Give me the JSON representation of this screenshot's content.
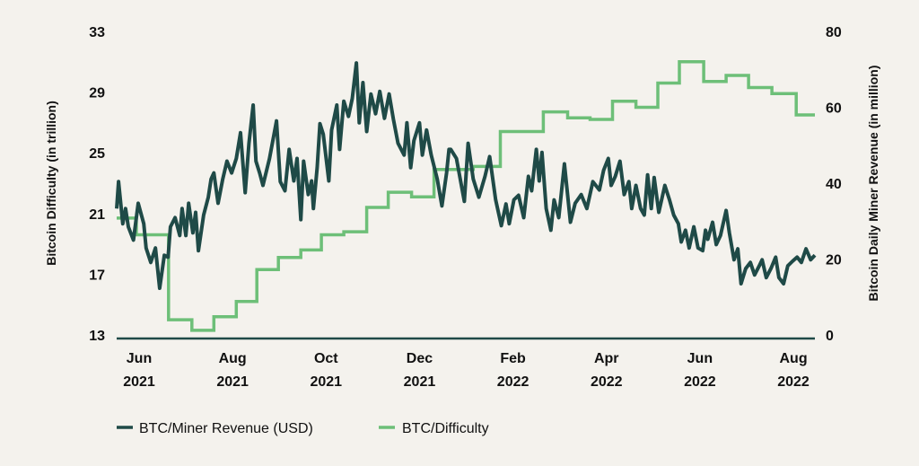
{
  "chart_data": {
    "type": "line",
    "x_unit": "months since Jun 2021",
    "xlim": [
      -0.48,
      14.46
    ],
    "x_ticks": [
      {
        "x": 0,
        "line1": "Jun",
        "line2": "2021"
      },
      {
        "x": 2,
        "line1": "Aug",
        "line2": "2021"
      },
      {
        "x": 4,
        "line1": "Oct",
        "line2": "2021"
      },
      {
        "x": 6,
        "line1": "Dec",
        "line2": "2021"
      },
      {
        "x": 8,
        "line1": "Feb",
        "line2": "2022"
      },
      {
        "x": 10,
        "line1": "Apr",
        "line2": "2022"
      },
      {
        "x": 12,
        "line1": "Jun",
        "line2": "2022"
      },
      {
        "x": 14,
        "line1": "Aug",
        "line2": "2022"
      }
    ],
    "y_left": {
      "label": "Bitcoin Difficulty (in trillion)",
      "lim": [
        13,
        33
      ],
      "ticks": [
        "13",
        "17",
        "21",
        "25",
        "29",
        "33"
      ]
    },
    "y_right": {
      "label": "Bitcoin Daily Miner Revenue (in million)",
      "lim": [
        0,
        80
      ],
      "ticks": [
        "0",
        "20",
        "40",
        "60",
        "80"
      ]
    },
    "legend_position": "bottom-left",
    "series": [
      {
        "name": "BTC/Miner Revenue (USD)",
        "axis": "right",
        "color": "#1f4a47",
        "points": [
          [
            -0.48,
            33.3
          ],
          [
            -0.44,
            40.4
          ],
          [
            -0.35,
            29.3
          ],
          [
            -0.29,
            33.3
          ],
          [
            -0.23,
            28.5
          ],
          [
            -0.12,
            25
          ],
          [
            -0.02,
            34.7
          ],
          [
            0.1,
            29.3
          ],
          [
            0.15,
            22.9
          ],
          [
            0.25,
            19.1
          ],
          [
            0.35,
            22.9
          ],
          [
            0.44,
            12.3
          ],
          [
            0.54,
            21
          ],
          [
            0.62,
            20.5
          ],
          [
            0.67,
            28.5
          ],
          [
            0.77,
            30.9
          ],
          [
            0.87,
            26.2
          ],
          [
            0.92,
            33.3
          ],
          [
            1.0,
            26.2
          ],
          [
            1.06,
            34.7
          ],
          [
            1.15,
            26.9
          ],
          [
            1.21,
            32.3
          ],
          [
            1.27,
            22.2
          ],
          [
            1.38,
            31.6
          ],
          [
            1.48,
            36.3
          ],
          [
            1.54,
            41.1
          ],
          [
            1.6,
            42.7
          ],
          [
            1.69,
            34.7
          ],
          [
            1.79,
            41.1
          ],
          [
            1.88,
            45.8
          ],
          [
            1.98,
            42.7
          ],
          [
            2.08,
            46.5
          ],
          [
            2.17,
            53.3
          ],
          [
            2.27,
            37.5
          ],
          [
            2.35,
            50.5
          ],
          [
            2.44,
            60.6
          ],
          [
            2.5,
            45.8
          ],
          [
            2.58,
            42.7
          ],
          [
            2.65,
            39.4
          ],
          [
            2.79,
            46.5
          ],
          [
            2.94,
            56.4
          ],
          [
            3.02,
            40.4
          ],
          [
            3.12,
            38
          ],
          [
            3.21,
            48.9
          ],
          [
            3.31,
            40.6
          ],
          [
            3.38,
            46.5
          ],
          [
            3.46,
            30.4
          ],
          [
            3.52,
            45.8
          ],
          [
            3.62,
            37
          ],
          [
            3.69,
            40.6
          ],
          [
            3.73,
            33.3
          ],
          [
            3.81,
            44.1
          ],
          [
            3.87,
            55.7
          ],
          [
            3.94,
            52.9
          ],
          [
            4.06,
            40.6
          ],
          [
            4.12,
            54
          ],
          [
            4.23,
            60.6
          ],
          [
            4.29,
            48.9
          ],
          [
            4.38,
            61.6
          ],
          [
            4.48,
            57.6
          ],
          [
            4.56,
            62.3
          ],
          [
            4.65,
            71.7
          ],
          [
            4.71,
            55.9
          ],
          [
            4.79,
            66.5
          ],
          [
            4.87,
            53.6
          ],
          [
            4.96,
            63.5
          ],
          [
            5.06,
            58.3
          ],
          [
            5.15,
            64.2
          ],
          [
            5.25,
            57.1
          ],
          [
            5.35,
            63.5
          ],
          [
            5.44,
            56.9
          ],
          [
            5.54,
            50.5
          ],
          [
            5.67,
            47.4
          ],
          [
            5.73,
            55.9
          ],
          [
            5.81,
            44.1
          ],
          [
            5.88,
            51.2
          ],
          [
            6.0,
            55.9
          ],
          [
            6.06,
            47.4
          ],
          [
            6.15,
            54
          ],
          [
            6.25,
            47.4
          ],
          [
            6.38,
            41.1
          ],
          [
            6.48,
            34
          ],
          [
            6.58,
            42.7
          ],
          [
            6.63,
            48.9
          ],
          [
            6.67,
            48.9
          ],
          [
            6.79,
            46.5
          ],
          [
            6.96,
            35.2
          ],
          [
            7.04,
            50.5
          ],
          [
            7.15,
            41.1
          ],
          [
            7.27,
            36.3
          ],
          [
            7.4,
            41.8
          ],
          [
            7.5,
            47
          ],
          [
            7.63,
            35.6
          ],
          [
            7.75,
            28.8
          ],
          [
            7.85,
            34.5
          ],
          [
            7.92,
            29.3
          ],
          [
            8.02,
            35.6
          ],
          [
            8.12,
            36.8
          ],
          [
            8.23,
            30.9
          ],
          [
            8.33,
            41.8
          ],
          [
            8.4,
            38
          ],
          [
            8.5,
            48.9
          ],
          [
            8.56,
            40.6
          ],
          [
            8.62,
            48.1
          ],
          [
            8.71,
            33.3
          ],
          [
            8.81,
            27.6
          ],
          [
            8.88,
            35.6
          ],
          [
            8.98,
            30.9
          ],
          [
            9.1,
            45.1
          ],
          [
            9.23,
            29.7
          ],
          [
            9.33,
            34.7
          ],
          [
            9.46,
            37
          ],
          [
            9.58,
            33.3
          ],
          [
            9.71,
            40.4
          ],
          [
            9.85,
            38.2
          ],
          [
            9.94,
            43.4
          ],
          [
            10.04,
            46.5
          ],
          [
            10.1,
            39.4
          ],
          [
            10.19,
            41.8
          ],
          [
            10.29,
            45.8
          ],
          [
            10.38,
            37
          ],
          [
            10.48,
            40.4
          ],
          [
            10.54,
            33.3
          ],
          [
            10.63,
            39.4
          ],
          [
            10.73,
            33.3
          ],
          [
            10.81,
            31.6
          ],
          [
            10.88,
            42.2
          ],
          [
            10.96,
            33.3
          ],
          [
            11.02,
            41.5
          ],
          [
            11.12,
            32.3
          ],
          [
            11.25,
            39.4
          ],
          [
            11.35,
            35.6
          ],
          [
            11.44,
            31.6
          ],
          [
            11.54,
            29.3
          ],
          [
            11.6,
            24.5
          ],
          [
            11.69,
            27.6
          ],
          [
            11.77,
            22.9
          ],
          [
            11.87,
            28.5
          ],
          [
            11.96,
            22.9
          ],
          [
            12.06,
            22.2
          ],
          [
            12.12,
            27.6
          ],
          [
            12.17,
            25.2
          ],
          [
            12.27,
            29.7
          ],
          [
            12.35,
            23.8
          ],
          [
            12.44,
            26.2
          ],
          [
            12.56,
            32.8
          ],
          [
            12.63,
            26.9
          ],
          [
            12.73,
            19.8
          ],
          [
            12.81,
            22.7
          ],
          [
            12.88,
            13.5
          ],
          [
            12.98,
            17.5
          ],
          [
            13.08,
            19.1
          ],
          [
            13.17,
            15.8
          ],
          [
            13.27,
            18.2
          ],
          [
            13.33,
            19.8
          ],
          [
            13.42,
            15.1
          ],
          [
            13.52,
            17.5
          ],
          [
            13.62,
            20.5
          ],
          [
            13.69,
            15.1
          ],
          [
            13.79,
            13.5
          ],
          [
            13.88,
            18.2
          ],
          [
            13.98,
            19.4
          ],
          [
            14.08,
            20.5
          ],
          [
            14.17,
            19.1
          ],
          [
            14.27,
            22.7
          ],
          [
            14.37,
            19.8
          ],
          [
            14.46,
            21
          ]
        ]
      },
      {
        "name": "BTC/Difficulty",
        "axis": "left",
        "color": "#6dbf78",
        "step": true,
        "points": [
          [
            -0.48,
            20.7
          ],
          [
            -0.06,
            19.6
          ],
          [
            0.63,
            14.0
          ],
          [
            1.13,
            13.3
          ],
          [
            1.6,
            14.2
          ],
          [
            2.08,
            15.2
          ],
          [
            2.52,
            17.3
          ],
          [
            2.98,
            18.1
          ],
          [
            3.46,
            18.6
          ],
          [
            3.9,
            19.6
          ],
          [
            4.38,
            19.8
          ],
          [
            4.87,
            21.4
          ],
          [
            5.33,
            22.4
          ],
          [
            5.83,
            22.1
          ],
          [
            6.31,
            23.9
          ],
          [
            7.15,
            24.1
          ],
          [
            7.73,
            26.4
          ],
          [
            8.65,
            27.7
          ],
          [
            9.17,
            27.3
          ],
          [
            9.65,
            27.2
          ],
          [
            10.13,
            28.4
          ],
          [
            10.63,
            28.0
          ],
          [
            11.1,
            29.6
          ],
          [
            11.56,
            31.0
          ],
          [
            12.08,
            29.7
          ],
          [
            12.56,
            30.1
          ],
          [
            13.04,
            29.3
          ],
          [
            13.54,
            28.9
          ],
          [
            14.06,
            27.5
          ],
          [
            14.46,
            27.5
          ]
        ]
      }
    ]
  }
}
